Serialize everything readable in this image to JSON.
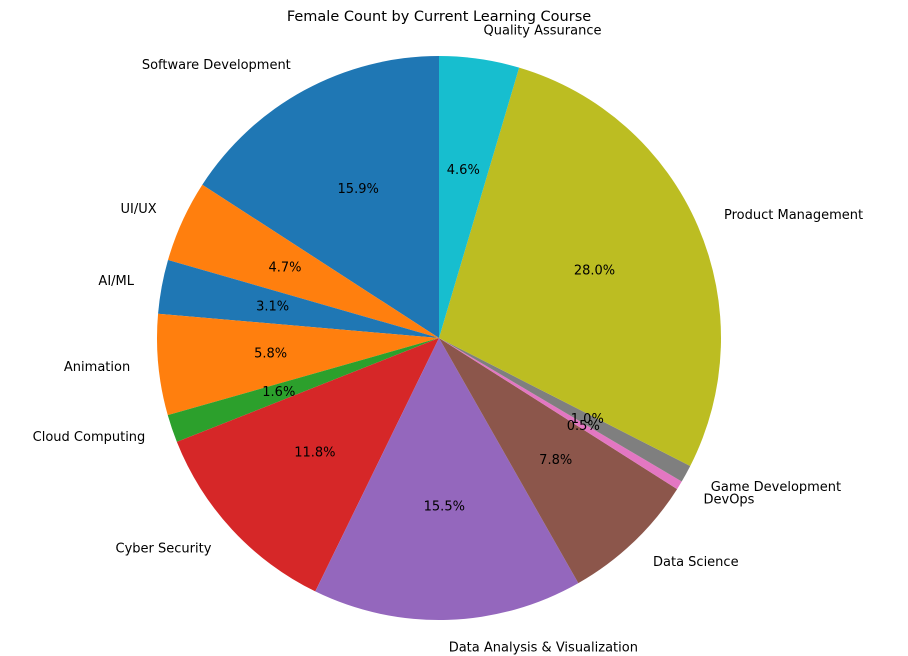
{
  "chart_data": {
    "type": "pie",
    "title": "Female Count by Current Learning Course",
    "start_angle_deg": 90,
    "direction": "counterclockwise",
    "slices": [
      {
        "label": "Software Development",
        "percent": 15.9,
        "pct_text": "15.9%",
        "color": "#1f77b4"
      },
      {
        "label": "UI/UX",
        "percent": 4.7,
        "pct_text": "4.7%",
        "color": "#ff7f0e"
      },
      {
        "label": "AI/ML",
        "percent": 3.1,
        "pct_text": "3.1%",
        "color": "#1f77b4"
      },
      {
        "label": "Animation",
        "percent": 5.8,
        "pct_text": "5.8%",
        "color": "#ff7f0e"
      },
      {
        "label": "Cloud Computing",
        "percent": 1.6,
        "pct_text": "1.6%",
        "color": "#2ca02c"
      },
      {
        "label": "Cyber Security",
        "percent": 11.8,
        "pct_text": "11.8%",
        "color": "#d62728"
      },
      {
        "label": "Data Analysis & Visualization",
        "percent": 15.5,
        "pct_text": "15.5%",
        "color": "#9467bd"
      },
      {
        "label": "Data Science",
        "percent": 7.8,
        "pct_text": "7.8%",
        "color": "#8c564b"
      },
      {
        "label": "DevOps",
        "percent": 0.5,
        "pct_text": "0.5%",
        "color": "#e377c2"
      },
      {
        "label": "Game Development",
        "percent": 1.0,
        "pct_text": "1.0%",
        "color": "#7f7f7f"
      },
      {
        "label": "Product Management",
        "percent": 28.0,
        "pct_text": "28.0%",
        "color": "#bcbd22"
      },
      {
        "label": "Quality Assurance",
        "percent": 4.6,
        "pct_text": "4.6%",
        "color": "#17becf"
      }
    ]
  }
}
